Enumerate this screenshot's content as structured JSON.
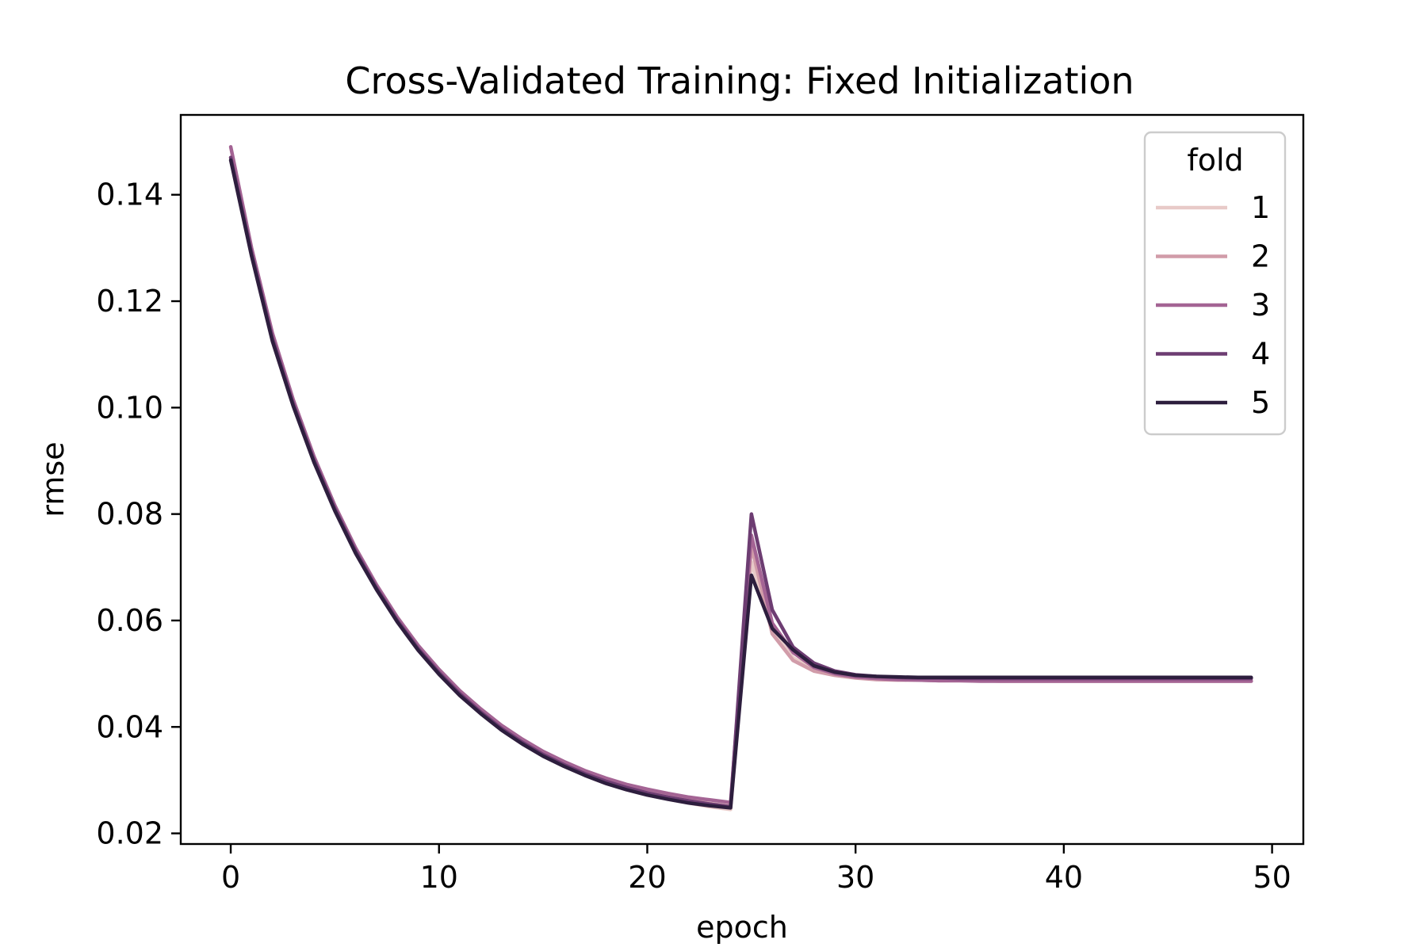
{
  "chart_data": {
    "type": "line",
    "title": "Cross-Validated Training: Fixed Initialization",
    "xlabel": "epoch",
    "ylabel": "rmse",
    "xlim": [
      -2.4,
      51.5
    ],
    "ylim": [
      0.018,
      0.155
    ],
    "xticks": [
      0,
      10,
      20,
      30,
      40,
      50
    ],
    "xtick_labels": [
      "0",
      "10",
      "20",
      "30",
      "40",
      "50"
    ],
    "yticks": [
      0.02,
      0.04,
      0.06,
      0.08,
      0.1,
      0.12,
      0.14
    ],
    "ytick_labels": [
      "0.02",
      "0.04",
      "0.06",
      "0.08",
      "0.10",
      "0.12",
      "0.14"
    ],
    "grid": false,
    "legend": {
      "title": "fold",
      "position": "upper right"
    },
    "x": [
      0,
      1,
      2,
      3,
      4,
      5,
      6,
      7,
      8,
      9,
      10,
      11,
      12,
      13,
      14,
      15,
      16,
      17,
      18,
      19,
      20,
      21,
      22,
      23,
      24,
      25,
      26,
      27,
      28,
      29,
      30,
      31,
      32,
      33,
      34,
      35,
      36,
      37,
      38,
      39,
      40,
      41,
      42,
      43,
      44,
      45,
      46,
      47,
      48,
      49
    ],
    "series": [
      {
        "name": "1",
        "color": "#e8cac8",
        "values": [
          0.1465,
          0.1285,
          0.1125,
          0.1003,
          0.0897,
          0.0806,
          0.0726,
          0.0658,
          0.0597,
          0.0544,
          0.0499,
          0.0459,
          0.0425,
          0.0394,
          0.0368,
          0.0345,
          0.0326,
          0.0309,
          0.0294,
          0.0282,
          0.0272,
          0.0264,
          0.0257,
          0.025,
          0.0245,
          0.071,
          0.058,
          0.053,
          0.0508,
          0.05,
          0.0495,
          0.0493,
          0.0492,
          0.0492,
          0.0491,
          0.0491,
          0.0491,
          0.0491,
          0.0491,
          0.0491,
          0.0491,
          0.0491,
          0.0491,
          0.0491,
          0.0491,
          0.0491,
          0.0491,
          0.0491,
          0.0491,
          0.0491
        ]
      },
      {
        "name": "2",
        "color": "#d19ca9",
        "values": [
          0.147,
          0.129,
          0.113,
          0.1008,
          0.0902,
          0.0811,
          0.0731,
          0.0663,
          0.0602,
          0.0549,
          0.0504,
          0.0464,
          0.043,
          0.0399,
          0.0373,
          0.035,
          0.0331,
          0.0314,
          0.0299,
          0.0288,
          0.0278,
          0.027,
          0.0263,
          0.0256,
          0.0251,
          0.074,
          0.0575,
          0.0525,
          0.0505,
          0.0497,
          0.0492,
          0.0489,
          0.0488,
          0.0488,
          0.0487,
          0.0487,
          0.0487,
          0.0486,
          0.0486,
          0.0486,
          0.0486,
          0.0486,
          0.0486,
          0.0486,
          0.0486,
          0.0486,
          0.0486,
          0.0486,
          0.0486,
          0.0486
        ]
      },
      {
        "name": "3",
        "color": "#a46494",
        "values": [
          0.149,
          0.13,
          0.114,
          0.1015,
          0.0908,
          0.0816,
          0.0736,
          0.0667,
          0.0606,
          0.0553,
          0.0508,
          0.0468,
          0.0434,
          0.0403,
          0.0377,
          0.0354,
          0.0335,
          0.0318,
          0.0304,
          0.0292,
          0.0283,
          0.0275,
          0.0268,
          0.0263,
          0.0258,
          0.076,
          0.0595,
          0.054,
          0.0512,
          0.05,
          0.0494,
          0.0491,
          0.0489,
          0.0488,
          0.0487,
          0.0487,
          0.0486,
          0.0486,
          0.0486,
          0.0486,
          0.0486,
          0.0486,
          0.0486,
          0.0486,
          0.0486,
          0.0486,
          0.0486,
          0.0486,
          0.0486,
          0.0486
        ]
      },
      {
        "name": "4",
        "color": "#6d3d72",
        "values": [
          0.147,
          0.129,
          0.113,
          0.1007,
          0.0901,
          0.081,
          0.073,
          0.0661,
          0.06,
          0.0547,
          0.0502,
          0.0462,
          0.0428,
          0.0397,
          0.0371,
          0.0348,
          0.0329,
          0.0312,
          0.0298,
          0.0286,
          0.0276,
          0.0268,
          0.0261,
          0.0255,
          0.025,
          0.08,
          0.062,
          0.055,
          0.052,
          0.0505,
          0.0498,
          0.0495,
          0.0493,
          0.0492,
          0.0492,
          0.0491,
          0.0491,
          0.0491,
          0.0491,
          0.0491,
          0.0491,
          0.0491,
          0.0491,
          0.0491,
          0.0491,
          0.0491,
          0.0491,
          0.0491,
          0.0491,
          0.0491
        ]
      },
      {
        "name": "5",
        "color": "#2d1e3e",
        "values": [
          0.1465,
          0.1285,
          0.1125,
          0.1003,
          0.0897,
          0.0806,
          0.0726,
          0.0658,
          0.0597,
          0.0544,
          0.0499,
          0.0459,
          0.0425,
          0.0394,
          0.0368,
          0.0345,
          0.0326,
          0.0309,
          0.0294,
          0.0282,
          0.0272,
          0.0264,
          0.0257,
          0.0252,
          0.0248,
          0.0685,
          0.0585,
          0.0545,
          0.0515,
          0.0503,
          0.0497,
          0.0495,
          0.0494,
          0.0493,
          0.0493,
          0.0493,
          0.0493,
          0.0493,
          0.0493,
          0.0493,
          0.0493,
          0.0493,
          0.0493,
          0.0493,
          0.0493,
          0.0493,
          0.0493,
          0.0493,
          0.0493,
          0.0493
        ]
      }
    ]
  }
}
